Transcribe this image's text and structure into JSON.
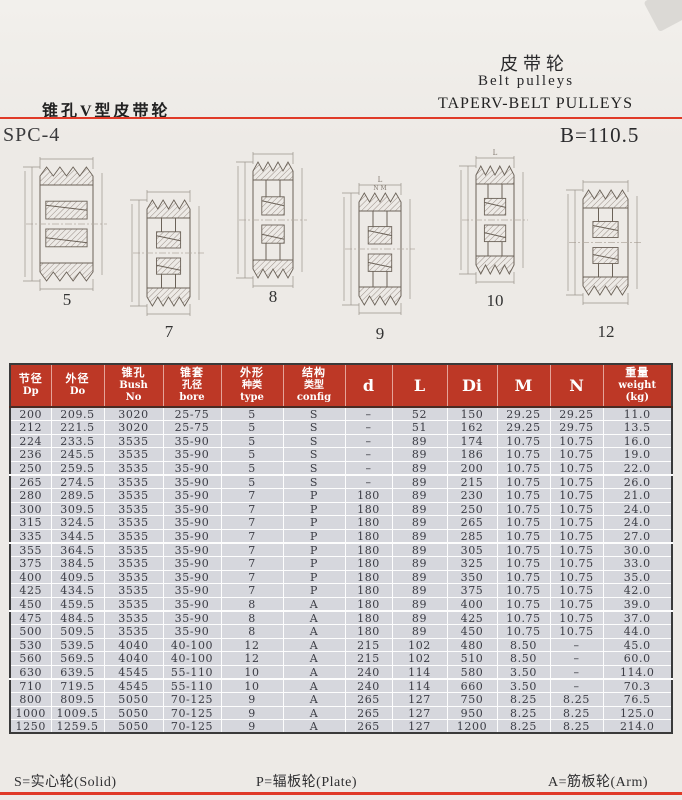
{
  "header": {
    "title_cn": "皮带轮",
    "title_en": "Belt pulleys",
    "left_heading": "锥孔V型皮带轮",
    "right_heading": "TAPERV-BELT PULLEYS",
    "model": "SPC-4",
    "belt_width": "B=110.5"
  },
  "drawings": [
    {
      "label": "5",
      "type": "solid"
    },
    {
      "label": "7",
      "type": "plate"
    },
    {
      "label": "8",
      "type": "plate"
    },
    {
      "label": "9",
      "type": "arm",
      "dim_top": "L",
      "dim_mid": "N M"
    },
    {
      "label": "10",
      "type": "arm",
      "dim_top": "L"
    },
    {
      "label": "12",
      "type": "arm"
    }
  ],
  "table": {
    "headers": [
      {
        "lines": [
          "节径",
          "Dp"
        ]
      },
      {
        "lines": [
          "外径",
          "Do"
        ]
      },
      {
        "lines": [
          "锥孔",
          "Bush",
          "No"
        ]
      },
      {
        "lines": [
          "锥套",
          "孔径",
          "bore"
        ]
      },
      {
        "lines": [
          "外形",
          "种类",
          "type"
        ]
      },
      {
        "lines": [
          "结构",
          "类型",
          "config"
        ]
      },
      {
        "lines": [
          "d"
        ],
        "big": true
      },
      {
        "lines": [
          "L"
        ],
        "big": true
      },
      {
        "lines": [
          "Di"
        ],
        "big": true
      },
      {
        "lines": [
          "M"
        ],
        "big": true
      },
      {
        "lines": [
          "N"
        ],
        "big": true
      },
      {
        "lines": [
          "重量",
          "weight",
          "(kg)"
        ]
      }
    ],
    "rows": [
      [
        "200",
        "209.5",
        "3020",
        "25-75",
        "5",
        "S",
        "–",
        "52",
        "150",
        "29.25",
        "29.25",
        "11.0"
      ],
      [
        "212",
        "221.5",
        "3020",
        "25-75",
        "5",
        "S",
        "–",
        "51",
        "162",
        "29.25",
        "29.75",
        "13.5"
      ],
      [
        "224",
        "233.5",
        "3535",
        "35-90",
        "5",
        "S",
        "–",
        "89",
        "174",
        "10.75",
        "10.75",
        "16.0"
      ],
      [
        "236",
        "245.5",
        "3535",
        "35-90",
        "5",
        "S",
        "–",
        "89",
        "186",
        "10.75",
        "10.75",
        "19.0"
      ],
      [
        "250",
        "259.5",
        "3535",
        "35-90",
        "5",
        "S",
        "–",
        "89",
        "200",
        "10.75",
        "10.75",
        "22.0"
      ],
      [
        "265",
        "274.5",
        "3535",
        "35-90",
        "5",
        "S",
        "–",
        "89",
        "215",
        "10.75",
        "10.75",
        "26.0"
      ],
      [
        "280",
        "289.5",
        "3535",
        "35-90",
        "7",
        "P",
        "180",
        "89",
        "230",
        "10.75",
        "10.75",
        "21.0"
      ],
      [
        "300",
        "309.5",
        "3535",
        "35-90",
        "7",
        "P",
        "180",
        "89",
        "250",
        "10.75",
        "10.75",
        "24.0"
      ],
      [
        "315",
        "324.5",
        "3535",
        "35-90",
        "7",
        "P",
        "180",
        "89",
        "265",
        "10.75",
        "10.75",
        "24.0"
      ],
      [
        "335",
        "344.5",
        "3535",
        "35-90",
        "7",
        "P",
        "180",
        "89",
        "285",
        "10.75",
        "10.75",
        "27.0"
      ],
      [
        "355",
        "364.5",
        "3535",
        "35-90",
        "7",
        "P",
        "180",
        "89",
        "305",
        "10.75",
        "10.75",
        "30.0"
      ],
      [
        "375",
        "384.5",
        "3535",
        "35-90",
        "7",
        "P",
        "180",
        "89",
        "325",
        "10.75",
        "10.75",
        "33.0"
      ],
      [
        "400",
        "409.5",
        "3535",
        "35-90",
        "7",
        "P",
        "180",
        "89",
        "350",
        "10.75",
        "10.75",
        "35.0"
      ],
      [
        "425",
        "434.5",
        "3535",
        "35-90",
        "7",
        "P",
        "180",
        "89",
        "375",
        "10.75",
        "10.75",
        "42.0"
      ],
      [
        "450",
        "459.5",
        "3535",
        "35-90",
        "8",
        "A",
        "180",
        "89",
        "400",
        "10.75",
        "10.75",
        "39.0"
      ],
      [
        "475",
        "484.5",
        "3535",
        "35-90",
        "8",
        "A",
        "180",
        "89",
        "425",
        "10.75",
        "10.75",
        "37.0"
      ],
      [
        "500",
        "509.5",
        "3535",
        "35-90",
        "8",
        "A",
        "180",
        "89",
        "450",
        "10.75",
        "10.75",
        "44.0"
      ],
      [
        "530",
        "539.5",
        "4040",
        "40-100",
        "12",
        "A",
        "215",
        "102",
        "480",
        "8.50",
        "–",
        "45.0"
      ],
      [
        "560",
        "569.5",
        "4040",
        "40-100",
        "12",
        "A",
        "215",
        "102",
        "510",
        "8.50",
        "–",
        "60.0"
      ],
      [
        "630",
        "639.5",
        "4545",
        "55-110",
        "10",
        "A",
        "240",
        "114",
        "580",
        "3.50",
        "–",
        "114.0"
      ],
      [
        "710",
        "719.5",
        "4545",
        "55-110",
        "10",
        "A",
        "240",
        "114",
        "660",
        "3.50",
        "–",
        "70.3"
      ],
      [
        "800",
        "809.5",
        "5050",
        "70-125",
        "9",
        "A",
        "265",
        "127",
        "750",
        "8.25",
        "8.25",
        "76.5"
      ],
      [
        "1000",
        "1009.5",
        "5050",
        "70-125",
        "9",
        "A",
        "265",
        "127",
        "950",
        "8.25",
        "8.25",
        "125.0"
      ],
      [
        "1250",
        "1259.5",
        "5050",
        "70-125",
        "9",
        "A",
        "265",
        "127",
        "1200",
        "8.25",
        "8.25",
        "214.0"
      ]
    ]
  },
  "legend": {
    "solid": "S=实心轮(Solid)",
    "plate": "P=辐板轮(Plate)",
    "arm": "A=筋板轮(Arm)"
  },
  "colors": {
    "accent_red": "#e03a28",
    "table_header_bg": "#bd3826",
    "table_row_bg": "#d6d7dd",
    "paper": "#edeae6"
  }
}
